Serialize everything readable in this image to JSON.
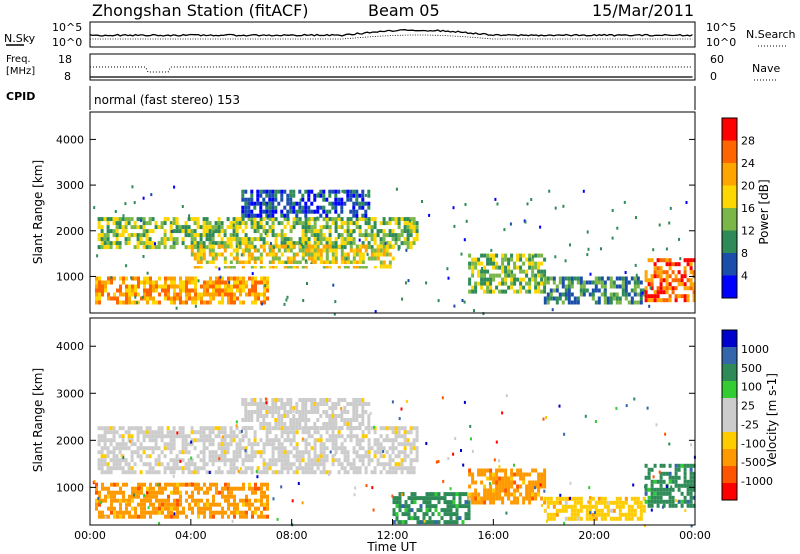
{
  "header": {
    "station_title": "Zhongshan Station (fitACF)",
    "beam_label": "Beam 05",
    "date": "15/Mar/2011"
  },
  "noise_panel": {
    "left_label": "N.Sky",
    "left_tick_top": "10^5",
    "left_tick_bottom": "10^0",
    "right_tick_top": "10^5",
    "right_tick_bottom": "10^0",
    "right_label": "N.Search"
  },
  "freq_panel": {
    "left_label_line1": "Freq.",
    "left_label_line2": "[MHz]",
    "left_tick_top": "18",
    "left_tick_bottom": "8",
    "right_tick_top": "60",
    "right_tick_bottom": "0",
    "right_label": "Nave"
  },
  "cpid_panel": {
    "label": "CPID",
    "value": "normal (fast stereo) 153"
  },
  "colors": {
    "power": [
      "#0000ff",
      "#1a4eaa",
      "#2e8b57",
      "#7ab648",
      "#ffd700",
      "#ffa500",
      "#ff6600",
      "#ff0000"
    ],
    "velocity": [
      "#ff0000",
      "#ff5500",
      "#ff9900",
      "#ffcc00",
      "#cccccc",
      "#cccccc",
      "#33cc33",
      "#2e8b57",
      "#3366aa",
      "#0000cc"
    ]
  },
  "chart_data": [
    {
      "type": "heatmap",
      "name": "power",
      "ylabel": "Slant Range [km]",
      "ylim": [
        200,
        4600
      ],
      "yticks": [
        "1000",
        "2000",
        "3000",
        "4000"
      ],
      "xlim": [
        0,
        24
      ],
      "colorbar_label": "Power [dB]",
      "colorbar_ticks": [
        "28",
        "24",
        "20",
        "16",
        "12",
        "8",
        "4"
      ],
      "regions": [
        {
          "t0": 0.3,
          "t1": 13.0,
          "r0": 1650,
          "r1": 2300,
          "level": 3
        },
        {
          "t0": 4.0,
          "t1": 12.0,
          "r0": 1200,
          "r1": 1700,
          "level": 4
        },
        {
          "t0": 0.2,
          "t1": 7.0,
          "r0": 400,
          "r1": 1000,
          "level": 5
        },
        {
          "t0": 6.0,
          "t1": 11.0,
          "r0": 2300,
          "r1": 2900,
          "level": 1
        },
        {
          "t0": 15.0,
          "t1": 18.0,
          "r0": 700,
          "r1": 1500,
          "level": 3
        },
        {
          "t0": 18.0,
          "t1": 22.0,
          "r0": 400,
          "r1": 1000,
          "level": 2
        },
        {
          "t0": 22.0,
          "t1": 24.0,
          "r0": 500,
          "r1": 1400,
          "level": 6
        }
      ]
    },
    {
      "type": "heatmap",
      "name": "velocity",
      "ylabel": "Slant Range [km]",
      "ylim": [
        200,
        4600
      ],
      "yticks": [
        "1000",
        "2000",
        "3000",
        "4000"
      ],
      "xlim": [
        0,
        24
      ],
      "xlabel": "Time UT",
      "xticks": [
        "00:00",
        "04:00",
        "08:00",
        "12:00",
        "16:00",
        "20:00",
        "00:00"
      ],
      "colorbar_label": "Velocity [m s-1]",
      "colorbar_ticks": [
        "1000",
        "500",
        "100",
        "25",
        "-25",
        "-100",
        "-500",
        "-1000"
      ],
      "regions": [
        {
          "t0": 0.3,
          "t1": 13.0,
          "r0": 1300,
          "r1": 2300,
          "level": 4
        },
        {
          "t0": 6.0,
          "t1": 11.0,
          "r0": 2300,
          "r1": 2900,
          "level": 4
        },
        {
          "t0": 0.2,
          "t1": 7.0,
          "r0": 400,
          "r1": 1100,
          "level": 2
        },
        {
          "t0": 12.0,
          "t1": 15.0,
          "r0": 300,
          "r1": 900,
          "level": 7
        },
        {
          "t0": 15.0,
          "t1": 18.0,
          "r0": 700,
          "r1": 1400,
          "level": 2
        },
        {
          "t0": 18.0,
          "t1": 22.0,
          "r0": 300,
          "r1": 800,
          "level": 3
        },
        {
          "t0": 22.0,
          "t1": 24.0,
          "r0": 600,
          "r1": 1500,
          "level": 7
        }
      ]
    }
  ]
}
